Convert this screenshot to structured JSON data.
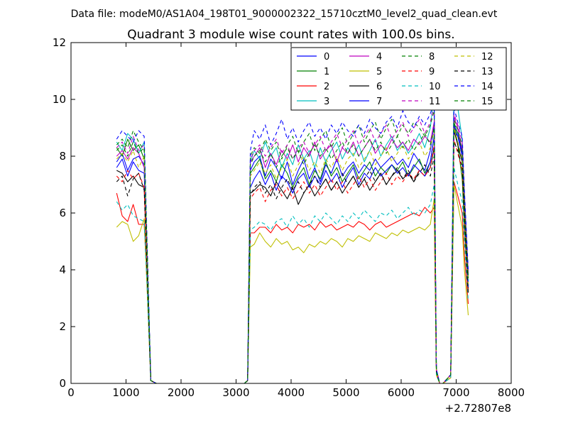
{
  "suptitle": "Data file: modeM0/AS1A04_198T01_9000002322_15710cztM0_level2_quad_clean.evt",
  "chart_data": {
    "type": "line",
    "title": "Quadrant 3 module wise count rates with 100.0s bins.",
    "xlabel": "",
    "ylabel": "",
    "x_offset_label": "+2.72807e8",
    "xlim": [
      0,
      8000
    ],
    "ylim": [
      0,
      12
    ],
    "xticks": [
      0,
      1000,
      2000,
      3000,
      4000,
      5000,
      6000,
      7000,
      8000
    ],
    "yticks": [
      0,
      2,
      4,
      6,
      8,
      10,
      12
    ],
    "grid": false,
    "legend_position": "top-right",
    "x": [
      830,
      930,
      1030,
      1130,
      1230,
      1330,
      1380,
      1450,
      1550,
      3150,
      3210,
      3260,
      3330,
      3430,
      3530,
      3630,
      3730,
      3830,
      3930,
      4030,
      4130,
      4230,
      4330,
      4430,
      4530,
      4630,
      4730,
      4830,
      4930,
      5030,
      5130,
      5230,
      5330,
      5430,
      5530,
      5630,
      5730,
      5830,
      5930,
      6030,
      6130,
      6230,
      6330,
      6430,
      6530,
      6600,
      6640,
      6700,
      6760,
      6900,
      6960,
      7030,
      7110,
      7150,
      7220
    ],
    "series": [
      {
        "name": "0",
        "color": "#0000ff",
        "dash": "solid",
        "values": [
          7.8,
          8.1,
          7.5,
          7.9,
          8.0,
          7.7,
          4.5,
          0.1,
          0,
          0,
          0.1,
          7.5,
          7.8,
          8.0,
          7.3,
          7.9,
          7.6,
          7.2,
          7.8,
          7.0,
          7.5,
          7.9,
          7.2,
          7.6,
          7.1,
          7.7,
          7.4,
          7.9,
          7.3,
          7.6,
          7.8,
          7.4,
          7.7,
          7.5,
          7.9,
          7.6,
          7.8,
          8.0,
          7.7,
          7.9,
          7.6,
          8.1,
          7.8,
          7.5,
          8.2,
          9.1,
          0.5,
          0,
          0,
          0.3,
          9.0,
          8.7,
          8.0,
          6.0,
          3.5
        ]
      },
      {
        "name": "1",
        "color": "#008000",
        "dash": "solid",
        "values": [
          8.3,
          8.0,
          8.6,
          8.2,
          8.4,
          7.9,
          4.8,
          0.1,
          0,
          0,
          0.1,
          7.4,
          7.6,
          7.9,
          7.2,
          7.5,
          7.1,
          7.7,
          7.4,
          6.9,
          7.3,
          7.6,
          7.0,
          7.5,
          7.2,
          7.8,
          7.3,
          7.6,
          7.1,
          7.4,
          7.7,
          7.2,
          7.5,
          7.8,
          7.3,
          7.6,
          7.4,
          7.7,
          7.5,
          7.8,
          7.3,
          7.6,
          7.9,
          7.4,
          7.8,
          8.7,
          0.4,
          0,
          0,
          0.3,
          9.2,
          8.4,
          7.2,
          5.5,
          3.2
        ]
      },
      {
        "name": "2",
        "color": "#ff0000",
        "dash": "solid",
        "values": [
          6.7,
          5.9,
          5.7,
          6.3,
          5.6,
          5.6,
          3.6,
          0.1,
          0,
          0,
          0.1,
          5.3,
          5.3,
          5.5,
          5.5,
          5.3,
          5.6,
          5.4,
          5.5,
          5.3,
          5.6,
          5.5,
          5.6,
          5.4,
          5.7,
          5.5,
          5.6,
          5.4,
          5.5,
          5.6,
          5.5,
          5.7,
          5.6,
          5.4,
          5.6,
          5.7,
          5.5,
          5.6,
          5.7,
          5.8,
          5.9,
          6.0,
          5.9,
          6.2,
          6.0,
          6.2,
          0.3,
          0,
          0,
          0.2,
          7.1,
          6.6,
          6.0,
          4.5,
          2.8
        ]
      },
      {
        "name": "3",
        "color": "#00bfbf",
        "dash": "solid",
        "values": [
          8.5,
          8.2,
          8.8,
          8.6,
          8.1,
          8.5,
          5.0,
          0.1,
          0,
          0,
          0.1,
          7.8,
          8.2,
          7.9,
          8.5,
          8.0,
          8.3,
          7.6,
          8.1,
          7.7,
          8.4,
          7.9,
          8.2,
          7.6,
          8.3,
          7.8,
          8.2,
          8.5,
          7.9,
          8.3,
          8.0,
          8.4,
          7.8,
          8.2,
          8.6,
          8.0,
          8.4,
          8.7,
          8.2,
          8.5,
          8.1,
          8.4,
          8.8,
          8.3,
          9.0,
          10.2,
          0.5,
          0,
          0,
          0.3,
          10.7,
          9.7,
          8.6,
          6.5,
          3.6
        ]
      },
      {
        "name": "4",
        "color": "#bf00bf",
        "dash": "solid",
        "values": [
          8.0,
          8.2,
          7.9,
          8.3,
          8.1,
          7.6,
          4.6,
          0.1,
          0,
          0,
          0.1,
          7.8,
          8.0,
          8.3,
          7.6,
          8.1,
          7.7,
          8.2,
          7.9,
          8.4,
          7.8,
          8.3,
          8.0,
          8.5,
          7.9,
          8.2,
          8.4,
          7.8,
          8.3,
          8.1,
          8.5,
          8.0,
          8.3,
          8.6,
          8.1,
          8.4,
          8.2,
          8.6,
          8.3,
          8.5,
          8.2,
          8.6,
          8.4,
          8.7,
          8.5,
          9.2,
          0.4,
          0,
          0,
          0.3,
          9.4,
          9.0,
          8.2,
          6.4,
          3.8
        ]
      },
      {
        "name": "5",
        "color": "#bfbf00",
        "dash": "solid",
        "values": [
          5.5,
          5.7,
          5.6,
          5.0,
          5.2,
          5.8,
          3.5,
          0.1,
          0,
          0,
          0.1,
          4.8,
          4.9,
          5.3,
          5.0,
          4.8,
          5.1,
          4.9,
          5.0,
          4.7,
          4.8,
          4.6,
          4.9,
          4.8,
          5.0,
          4.9,
          5.1,
          5.0,
          4.8,
          5.1,
          5.0,
          5.2,
          5.1,
          5.0,
          5.3,
          5.2,
          5.1,
          5.3,
          5.2,
          5.4,
          5.3,
          5.4,
          5.5,
          5.4,
          5.6,
          6.5,
          0.3,
          0,
          0,
          0.2,
          7.0,
          6.3,
          5.5,
          4.0,
          2.4
        ]
      },
      {
        "name": "6",
        "color": "#000000",
        "dash": "solid",
        "values": [
          7.5,
          7.4,
          7.1,
          7.3,
          7.0,
          6.9,
          4.2,
          0.1,
          0,
          0,
          0.1,
          6.7,
          6.8,
          7.0,
          6.9,
          6.6,
          7.1,
          6.8,
          6.5,
          6.9,
          6.3,
          6.7,
          7.0,
          6.6,
          6.9,
          7.2,
          6.8,
          7.1,
          6.7,
          7.0,
          7.3,
          6.9,
          7.2,
          6.8,
          7.1,
          7.4,
          7.0,
          7.3,
          7.5,
          7.2,
          7.4,
          7.1,
          7.5,
          7.3,
          7.6,
          8.3,
          0.4,
          0,
          0,
          0.3,
          8.9,
          8.4,
          7.8,
          6.0,
          3.3
        ]
      },
      {
        "name": "7",
        "color": "#0000ff",
        "dash": "solid",
        "values": [
          7.6,
          7.9,
          7.3,
          7.8,
          7.5,
          7.4,
          4.4,
          0.1,
          0,
          0,
          0.1,
          6.9,
          7.2,
          7.5,
          7.0,
          7.4,
          6.8,
          7.3,
          7.1,
          6.7,
          7.2,
          7.4,
          6.9,
          7.3,
          7.0,
          7.5,
          7.1,
          7.4,
          6.9,
          7.3,
          7.6,
          7.0,
          7.4,
          7.2,
          7.6,
          7.3,
          7.5,
          7.7,
          7.4,
          7.6,
          7.3,
          7.7,
          7.5,
          7.3,
          7.8,
          8.7,
          0.4,
          0,
          0,
          0.3,
          9.1,
          8.8,
          8.1,
          6.2,
          3.4
        ]
      },
      {
        "name": "8",
        "color": "#008000",
        "dash": "dashed",
        "values": [
          8.4,
          8.6,
          8.3,
          8.9,
          8.5,
          8.2,
          5.0,
          0.1,
          0,
          0,
          0.1,
          8.0,
          8.3,
          8.1,
          8.6,
          8.2,
          8.5,
          7.9,
          8.4,
          8.7,
          8.1,
          8.5,
          8.8,
          8.2,
          8.6,
          8.9,
          8.3,
          8.7,
          9.0,
          8.4,
          8.8,
          9.1,
          8.5,
          8.9,
          9.2,
          8.6,
          9.0,
          9.3,
          8.7,
          9.1,
          8.8,
          9.2,
          9.0,
          8.7,
          9.1,
          9.6,
          0.5,
          0,
          0,
          0.3,
          9.3,
          8.9,
          8.4,
          6.6,
          3.8
        ]
      },
      {
        "name": "9",
        "color": "#ff0000",
        "dash": "dashed",
        "values": [
          7.3,
          7.1,
          7.5,
          7.2,
          7.4,
          6.9,
          4.2,
          0.1,
          0,
          0,
          0.1,
          6.5,
          6.7,
          6.9,
          6.4,
          6.8,
          7.0,
          6.6,
          6.9,
          6.5,
          6.8,
          7.1,
          6.7,
          7.0,
          6.6,
          6.9,
          7.2,
          6.8,
          7.1,
          6.7,
          7.0,
          7.3,
          6.9,
          7.2,
          6.8,
          7.1,
          7.4,
          7.0,
          7.3,
          7.1,
          7.4,
          7.2,
          7.5,
          7.3,
          7.6,
          8.4,
          0.4,
          0,
          0,
          0.3,
          8.6,
          8.1,
          7.5,
          5.8,
          3.2
        ]
      },
      {
        "name": "10",
        "color": "#00bfbf",
        "dash": "dashed",
        "values": [
          6.4,
          6.1,
          6.3,
          5.9,
          5.8,
          5.7,
          3.6,
          0.1,
          0,
          0,
          0.1,
          5.4,
          5.5,
          5.7,
          5.6,
          5.4,
          5.7,
          5.8,
          5.5,
          5.9,
          5.6,
          5.8,
          5.5,
          5.9,
          5.7,
          6.0,
          5.8,
          5.6,
          5.9,
          5.7,
          6.0,
          5.8,
          6.1,
          5.9,
          5.7,
          6.0,
          5.9,
          6.1,
          5.8,
          6.0,
          6.2,
          5.9,
          6.1,
          6.0,
          6.3,
          7.0,
          0.3,
          0,
          0,
          0.2,
          7.6,
          7.0,
          6.4,
          5.0,
          2.9
        ]
      },
      {
        "name": "11",
        "color": "#bf00bf",
        "dash": "dashed",
        "values": [
          8.3,
          8.5,
          8.1,
          8.7,
          8.2,
          8.4,
          5.1,
          0.1,
          0,
          0,
          0.1,
          7.9,
          8.2,
          8.4,
          8.0,
          8.3,
          8.6,
          8.1,
          8.4,
          7.9,
          8.3,
          8.5,
          8.1,
          8.4,
          8.7,
          8.2,
          8.5,
          8.8,
          8.3,
          8.6,
          8.9,
          8.4,
          8.7,
          9.0,
          8.5,
          8.8,
          9.1,
          8.6,
          8.9,
          9.2,
          8.7,
          9.0,
          9.3,
          8.8,
          9.2,
          9.8,
          0.5,
          0,
          0,
          0.3,
          9.5,
          9.1,
          8.5,
          6.7,
          3.9
        ]
      },
      {
        "name": "12",
        "color": "#bfbf00",
        "dash": "dashed",
        "values": [
          7.9,
          8.1,
          7.8,
          8.2,
          7.6,
          8.0,
          4.8,
          0.1,
          0,
          0,
          0.1,
          7.3,
          7.5,
          7.8,
          7.4,
          7.7,
          7.2,
          7.6,
          7.9,
          7.3,
          7.7,
          8.0,
          7.5,
          7.8,
          7.4,
          7.9,
          7.6,
          8.0,
          7.5,
          7.9,
          8.1,
          7.6,
          7.9,
          8.2,
          7.7,
          8.0,
          8.3,
          7.8,
          8.1,
          8.4,
          7.9,
          8.2,
          8.5,
          8.0,
          8.3,
          8.9,
          0.4,
          0,
          0,
          0.3,
          9.0,
          8.5,
          7.9,
          6.1,
          3.5
        ]
      },
      {
        "name": "13",
        "color": "#000000",
        "dash": "dashed",
        "values": [
          7.1,
          7.3,
          6.6,
          7.2,
          7.4,
          6.8,
          4.1,
          0.1,
          0,
          0,
          0.1,
          6.6,
          6.9,
          7.1,
          6.7,
          7.0,
          6.5,
          6.9,
          7.2,
          6.8,
          7.1,
          6.7,
          7.0,
          7.3,
          6.9,
          7.2,
          6.8,
          7.1,
          7.4,
          7.0,
          7.3,
          6.9,
          7.2,
          7.5,
          7.1,
          7.4,
          7.0,
          7.3,
          7.6,
          7.2,
          7.5,
          7.1,
          7.4,
          7.7,
          7.3,
          8.0,
          0.4,
          0,
          0,
          0.3,
          8.5,
          8.2,
          7.6,
          5.9,
          3.1
        ]
      },
      {
        "name": "14",
        "color": "#0000ff",
        "dash": "dashed",
        "values": [
          8.6,
          8.9,
          8.7,
          8.5,
          8.9,
          8.7,
          5.2,
          0.1,
          0,
          0,
          0.1,
          8.2,
          8.9,
          8.6,
          9.1,
          8.4,
          8.8,
          9.3,
          8.6,
          9.0,
          8.5,
          8.9,
          9.2,
          8.7,
          9.0,
          8.6,
          9.1,
          8.8,
          9.2,
          8.9,
          8.7,
          9.1,
          8.8,
          9.3,
          9.0,
          8.8,
          9.2,
          9.4,
          9.0,
          9.6,
          9.2,
          9.0,
          9.4,
          9.1,
          9.5,
          9.9,
          0.5,
          0,
          0,
          0.3,
          9.7,
          9.2,
          8.7,
          6.8,
          4.0
        ]
      },
      {
        "name": "15",
        "color": "#008000",
        "dash": "dashed",
        "values": [
          8.2,
          8.4,
          8.0,
          8.5,
          8.1,
          8.3,
          5.0,
          0.1,
          0,
          0,
          0.1,
          7.7,
          8.0,
          8.2,
          7.8,
          8.1,
          7.6,
          8.0,
          8.3,
          7.9,
          8.2,
          7.7,
          8.1,
          8.4,
          8.0,
          8.3,
          7.9,
          8.2,
          8.5,
          8.1,
          8.4,
          8.0,
          8.3,
          8.6,
          8.2,
          8.5,
          8.1,
          8.4,
          8.7,
          8.3,
          8.6,
          8.2,
          8.5,
          8.8,
          8.4,
          9.0,
          0.4,
          0,
          0,
          0.3,
          9.2,
          8.8,
          8.2,
          6.4,
          3.7
        ]
      }
    ]
  }
}
